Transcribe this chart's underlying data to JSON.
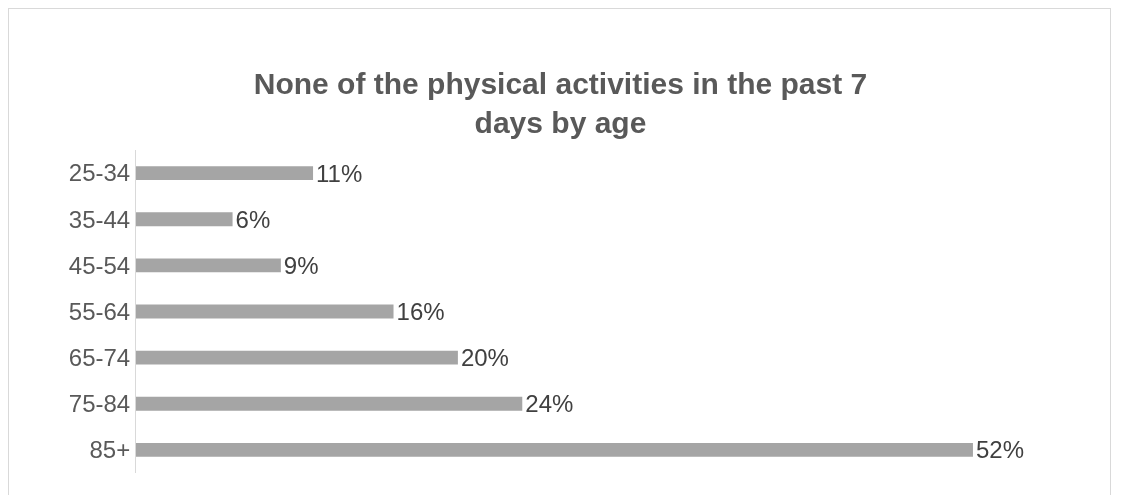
{
  "chart_data": {
    "type": "bar",
    "orientation": "horizontal",
    "title": "None of the physical activities in the past 7 days by age",
    "categories": [
      "25-34",
      "35-44",
      "45-54",
      "55-64",
      "65-74",
      "75-84",
      "85+"
    ],
    "values": [
      11,
      6,
      9,
      16,
      20,
      24,
      52
    ],
    "value_labels": [
      "11%",
      "6%",
      "9%",
      "16%",
      "20%",
      "24%",
      "52%"
    ],
    "color": "#a5a5a5",
    "tick_labels": "y"
  }
}
